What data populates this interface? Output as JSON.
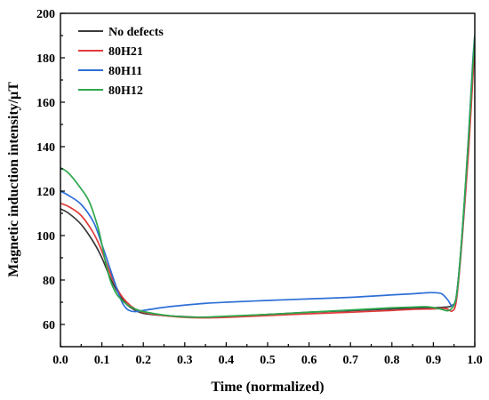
{
  "chart_data": {
    "type": "line",
    "title": "",
    "xlabel": "Time (normalized)",
    "ylabel": "Magnetic induction intensity/μT",
    "xlim": [
      0.0,
      1.0
    ],
    "ylim": [
      50,
      200
    ],
    "xticks": [
      "0.0",
      "0.1",
      "0.2",
      "0.3",
      "0.4",
      "0.5",
      "0.6",
      "0.7",
      "0.8",
      "0.9",
      "1.0"
    ],
    "yticks": [
      "60",
      "80",
      "100",
      "120",
      "140",
      "160",
      "180",
      "200"
    ],
    "legend_position": "top-left",
    "grid": false,
    "series": [
      {
        "name": "No defects",
        "color": "#3a3a3a",
        "x": [
          0.0,
          0.02,
          0.05,
          0.08,
          0.1,
          0.12,
          0.14,
          0.16,
          0.18,
          0.2,
          0.25,
          0.3,
          0.35,
          0.4,
          0.5,
          0.6,
          0.7,
          0.8,
          0.85,
          0.9,
          0.93,
          0.945,
          0.955,
          0.965,
          0.975,
          0.985,
          0.995,
          1.0
        ],
        "y": [
          112,
          110,
          105,
          97,
          90,
          81,
          74,
          69,
          66.5,
          65,
          64,
          63.5,
          63.2,
          63.5,
          64.5,
          65.5,
          66.2,
          67,
          67.2,
          67.5,
          67.8,
          68.5,
          72,
          90,
          115,
          140,
          172,
          185
        ]
      },
      {
        "name": "80H21",
        "color": "#e03a3a",
        "x": [
          0.0,
          0.02,
          0.05,
          0.08,
          0.1,
          0.12,
          0.14,
          0.16,
          0.18,
          0.2,
          0.25,
          0.3,
          0.35,
          0.4,
          0.5,
          0.6,
          0.7,
          0.8,
          0.85,
          0.9,
          0.93,
          0.945,
          0.955,
          0.965,
          0.975,
          0.985,
          0.995,
          1.0
        ],
        "y": [
          114.5,
          113,
          109,
          101,
          93,
          83,
          75,
          70,
          67,
          65.5,
          64,
          63.2,
          63,
          63.2,
          64,
          64.8,
          65.5,
          66.3,
          66.8,
          67,
          67.2,
          66,
          70,
          88,
          112,
          138,
          170,
          186
        ]
      },
      {
        "name": "80H11",
        "color": "#2e6fd6",
        "x": [
          0.0,
          0.02,
          0.05,
          0.08,
          0.1,
          0.12,
          0.14,
          0.15,
          0.16,
          0.17,
          0.18,
          0.2,
          0.25,
          0.3,
          0.35,
          0.4,
          0.5,
          0.6,
          0.7,
          0.8,
          0.85,
          0.88,
          0.9,
          0.92,
          0.935,
          0.945,
          0.955,
          0.965,
          0.975,
          0.985,
          0.995,
          1.0
        ],
        "y": [
          120,
          118,
          114,
          106,
          96,
          85,
          74,
          69.5,
          67,
          66,
          65.8,
          66.3,
          67.7,
          68.7,
          69.5,
          70,
          70.8,
          71.5,
          72.2,
          73.3,
          73.8,
          74.2,
          74.3,
          73.8,
          71,
          68.5,
          72,
          90,
          115,
          145,
          178,
          190
        ]
      },
      {
        "name": "80H12",
        "color": "#2ea84e",
        "x": [
          0.0,
          0.02,
          0.05,
          0.07,
          0.09,
          0.1,
          0.11,
          0.12,
          0.13,
          0.14,
          0.16,
          0.18,
          0.2,
          0.25,
          0.3,
          0.35,
          0.4,
          0.5,
          0.6,
          0.7,
          0.8,
          0.85,
          0.88,
          0.9,
          0.92,
          0.94,
          0.955,
          0.965,
          0.975,
          0.985,
          0.995,
          1.0
        ],
        "y": [
          130.5,
          128,
          121,
          115,
          104,
          96,
          87,
          80,
          75.5,
          72.5,
          69,
          67,
          65.8,
          64.2,
          63.4,
          63.3,
          63.7,
          64.5,
          65.5,
          66.5,
          67.5,
          67.8,
          68,
          67.6,
          66.8,
          66.5,
          72,
          90,
          116,
          144,
          176,
          190
        ]
      }
    ]
  }
}
